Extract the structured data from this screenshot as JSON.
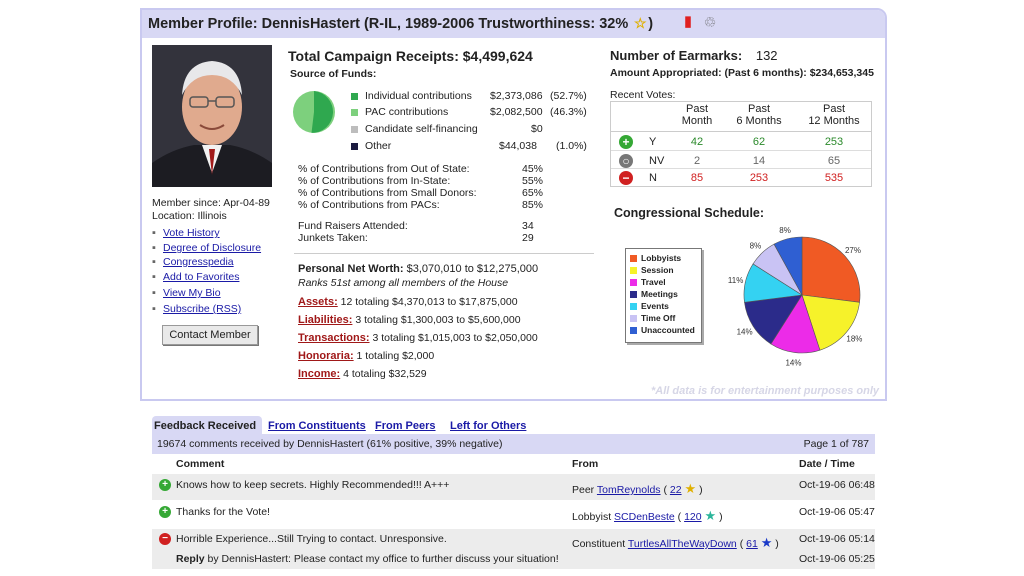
{
  "header": {
    "title": "Member Profile: DennisHastert (R-IL, 1989-2006 Trustworthiness: 32%",
    "title_close": ")",
    "icons": [
      "star-icon",
      "trash-icon",
      "recycle-icon"
    ]
  },
  "member": {
    "since": "Member since: Apr-04-89",
    "location": "Location: Illinois",
    "links": [
      "Vote History",
      "Degree of Disclosure",
      "Congresspedia",
      "Add to Favorites",
      "View My Bio",
      "Subscribe (RSS)"
    ],
    "contact_button": "Contact Member"
  },
  "campaign": {
    "title": "Total Campaign Receipts: $4,499,624",
    "source_label": "Source of Funds:",
    "funds": [
      {
        "label": "Individual contributions",
        "amount": "$2,373,086",
        "pct": "(52.7%)",
        "color": "#2fa84f"
      },
      {
        "label": "PAC contributions",
        "amount": "$2,082,500",
        "pct": "(46.3%)",
        "color": "#7dd07d"
      },
      {
        "label": "Candidate self-financing",
        "amount": "$0",
        "pct": "",
        "color": "#bdbdbd"
      },
      {
        "label": "Other",
        "amount": "$44,038",
        "pct": "(1.0%)",
        "color": "#1a1a40"
      }
    ],
    "stats": [
      {
        "label": "% of Contributions from Out of State:",
        "value": "45%"
      },
      {
        "label": "% of Contributions from In-State:",
        "value": "55%"
      },
      {
        "label": "% of Contributions from Small Donors:",
        "value": "65%"
      },
      {
        "label": "% of Contributions from PACs:",
        "value": "85%"
      }
    ],
    "fundraisers": {
      "label": "Fund Raisers Attended:",
      "value": "34"
    },
    "junkets": {
      "label": "Junkets Taken:",
      "value": "29"
    }
  },
  "worth": {
    "label": "Personal Net Worth:",
    "value": "$3,070,010 to $12,275,000",
    "rank": "Ranks 51st among all members of the House",
    "items": [
      {
        "label": "Assets:",
        "text": "12 totaling $4,370,013 to $17,875,000"
      },
      {
        "label": "Liabilities:",
        "text": "3 totaling $1,300,003 to $5,600,000"
      },
      {
        "label": "Transactions:",
        "text": "3 totaling $1,015,003 to $2,050,000"
      },
      {
        "label": "Honoraria:",
        "text": "1 totaling $2,000"
      },
      {
        "label": "Income:",
        "text": "4 totaling $32,529"
      }
    ]
  },
  "earmarks": {
    "title": "Number of Earmarks:",
    "count": "132",
    "appropriated": "Amount Appropriated: (Past 6 months): $234,653,345"
  },
  "votes": {
    "label": "Recent Votes:",
    "cols": [
      "Past Month",
      "Past 6 Months",
      "Past 12 Months"
    ],
    "col_lines": [
      [
        "Past",
        "Month"
      ],
      [
        "Past",
        "6 Months"
      ],
      [
        "Past",
        "12 Months"
      ]
    ],
    "rows": [
      {
        "label": "Y",
        "values": [
          "42",
          "62",
          "253"
        ],
        "color": "#2b8a2b",
        "icon_color": "#35a835",
        "icon": "+"
      },
      {
        "label": "NV",
        "values": [
          "2",
          "14",
          "65"
        ],
        "color": "#666666",
        "icon_color": "#777777",
        "icon": "o"
      },
      {
        "label": "N",
        "values": [
          "85",
          "253",
          "535"
        ],
        "color": "#d02020",
        "icon_color": "#d02020",
        "icon": "-"
      }
    ]
  },
  "schedule": {
    "title": "Congressional Schedule:",
    "chart_data": {
      "type": "pie",
      "title": "Congressional Schedule:",
      "categories": [
        "Lobbyists",
        "Session",
        "Travel",
        "Meetings",
        "Events",
        "Time Off",
        "Unaccounted"
      ],
      "values": [
        27,
        18,
        14,
        14,
        11,
        8,
        8
      ],
      "labels": [
        "27%",
        "18%",
        "14%",
        "14%",
        "11%",
        "8%",
        "8%"
      ],
      "colors": [
        "#f05a24",
        "#f6f22a",
        "#ec2be8",
        "#2b2b8a",
        "#34d2f2",
        "#c9c3f4",
        "#2f5fd2"
      ]
    }
  },
  "watermark": "*All data is for entertainment purposes only",
  "feedback": {
    "tabs": [
      "Feedback Received",
      "From Constituents",
      "From Peers",
      "Left for Others"
    ],
    "summary": "19674 comments received by DennisHastert (61% positive, 39% negative)",
    "page": "Page 1 of 787",
    "columns": {
      "comment": "Comment",
      "from": "From",
      "datetime": "Date / Time"
    },
    "rows": [
      {
        "type": "positive",
        "comment": "Knows how to keep secrets. Highly Recommended!!! A+++",
        "role": "Peer",
        "user": "TomReynolds",
        "score": "22",
        "star": "gold-star-icon",
        "date": "Oct-19-06 06:48"
      },
      {
        "type": "positive",
        "comment": "Thanks for the Vote!",
        "role": "Lobbyist",
        "user": "SCDenBeste",
        "score": "120",
        "star": "teal-star-icon",
        "date": "Oct-19-06 05:47"
      },
      {
        "type": "negative",
        "comment": "Horrible Experience...Still Trying to contact. Unresponsive.",
        "role": "Constituent",
        "user": "TurtlesAllTheWayDown",
        "score": "61",
        "star": "blue-star-icon",
        "date": "Oct-19-06 05:14",
        "reply_label": "Reply",
        "reply": "by DennisHastert: Please contact my office to further discuss your situation!",
        "reply_date": "Oct-19-06 05:25"
      }
    ]
  }
}
